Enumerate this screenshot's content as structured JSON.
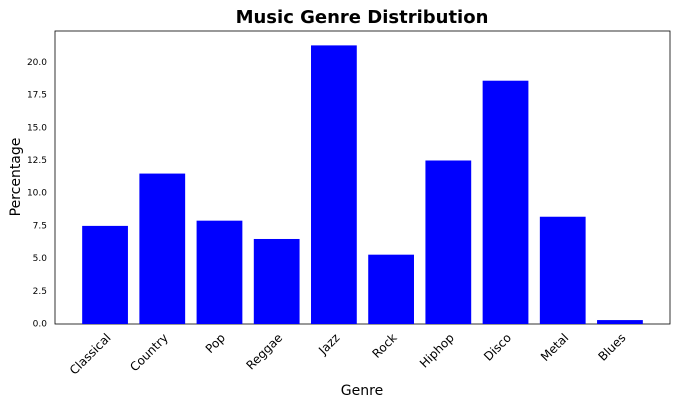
{
  "chart_data": {
    "type": "bar",
    "title": "Music Genre Distribution",
    "x_label": "Genre",
    "y_label": "Percentage",
    "categories": [
      "Classical",
      "Country",
      "Pop",
      "Reggae",
      "Jazz",
      "Rock",
      "Hiphop",
      "Disco",
      "Metal",
      "Blues"
    ],
    "values": [
      7.5,
      11.5,
      7.9,
      6.5,
      21.3,
      5.3,
      12.5,
      18.6,
      8.2,
      0.3
    ],
    "color": "#0000ff",
    "ylim": [
      0,
      22.4
    ],
    "yticks": [
      {
        "value": 0,
        "label": "0.0"
      },
      {
        "value": 2.5,
        "label": "2.5"
      },
      {
        "value": 5,
        "label": "5.0"
      },
      {
        "value": 7.5,
        "label": "7.5"
      },
      {
        "value": 10,
        "label": "10.0"
      },
      {
        "value": 12.5,
        "label": "12.5"
      },
      {
        "value": 15,
        "label": "15.0"
      },
      {
        "value": 17.5,
        "label": "17.5"
      },
      {
        "value": 20,
        "label": "20.0"
      }
    ],
    "grid": false
  }
}
